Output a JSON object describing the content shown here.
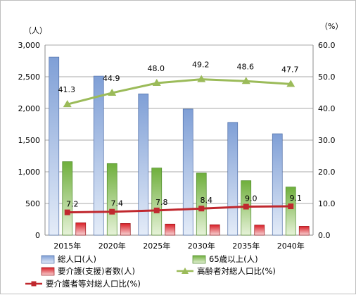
{
  "chart_data": {
    "type": "bar",
    "categories": [
      "2015年",
      "2020年",
      "2025年",
      "2030年",
      "2035年",
      "2040年"
    ],
    "y_left_unit": "（人）",
    "y_right_unit": "（%）",
    "y_left_ticks": [
      "0",
      "500",
      "1,000",
      "1,500",
      "2,000",
      "2,500",
      "3,000"
    ],
    "y_right_ticks": [
      "0.0",
      "10.0",
      "20.0",
      "30.0",
      "40.0",
      "50.0",
      "60.0"
    ],
    "y_left_range": [
      0,
      3000
    ],
    "y_right_range": [
      0,
      60
    ],
    "grid": true,
    "legend_position": "bottom",
    "bar_series": [
      {
        "name": "総人口(人)",
        "axis": "left",
        "color": "#9DB8E3",
        "values": [
          2810,
          2510,
          2230,
          1990,
          1780,
          1600
        ]
      },
      {
        "name": "65歳以上(人)",
        "axis": "left",
        "color": "#9BCB6A",
        "values": [
          1160,
          1130,
          1060,
          980,
          860,
          760
        ]
      },
      {
        "name": "要介護(支援)者数(人)",
        "axis": "left",
        "color": "#E0282E",
        "values": [
          195,
          185,
          175,
          165,
          160,
          140
        ]
      }
    ],
    "line_series": [
      {
        "name": "高齢者対総人口比(%)",
        "axis": "right",
        "color": "#9BBB59",
        "marker": "triangle",
        "values": [
          41.3,
          44.9,
          48.0,
          49.2,
          48.6,
          47.7
        ],
        "labels": [
          "41.3",
          "44.9",
          "48.0",
          "49.2",
          "48.6",
          "47.7"
        ]
      },
      {
        "name": "要介護者等対総人口比(%)",
        "axis": "right",
        "color": "#C0282E",
        "marker": "square",
        "values": [
          7.2,
          7.4,
          7.8,
          8.4,
          9.0,
          9.1
        ],
        "labels": [
          "7.2",
          "7.4",
          "7.8",
          "8.4",
          "9.0",
          "9.1"
        ]
      }
    ]
  }
}
